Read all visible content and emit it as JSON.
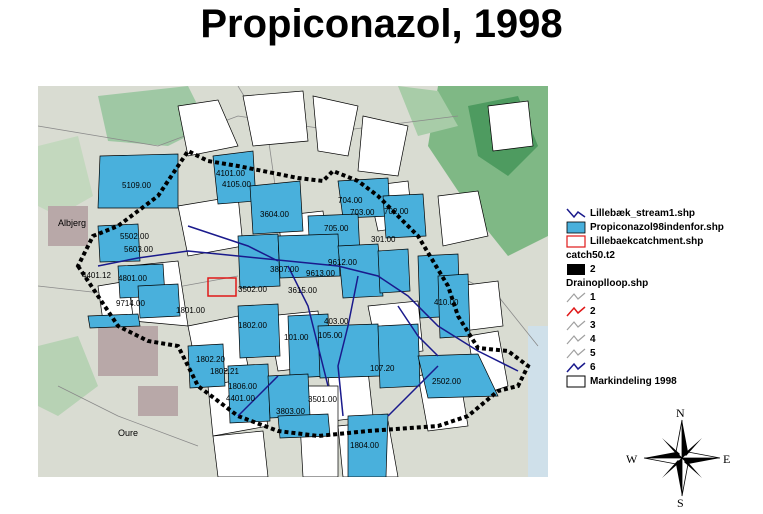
{
  "title": "Propiconazol, 1998",
  "map": {
    "place_labels": [
      "Albjerg",
      "Oure"
    ],
    "field_labels": [
      "5109.00",
      "4101.00",
      "4105.00",
      "3604.00",
      "704.00",
      "703.00",
      "702.00",
      "705.00",
      "5502.00",
      "5603.00",
      "3807.00",
      "9612.00",
      "9613.00",
      "4801.00",
      "4401.12",
      "9714.00",
      "3502.00",
      "3615.00",
      "1801.00",
      "1802.00",
      "301.00",
      "101.00",
      "1802.20",
      "1802.21",
      "1806.00",
      "4401.00",
      "3501.00",
      "3803.00",
      "1804.00",
      "2502.00",
      "107.20",
      "403.00",
      "105.00",
      "410.00"
    ]
  },
  "legend": {
    "items": [
      {
        "label": "Lillebæk_stream1.shp",
        "color": "#1a1a8c"
      },
      {
        "label": "Propiconazol98indenfor.shp",
        "color": "#49b0dc"
      },
      {
        "label": "Lillebaekcatchment.shp",
        "color": "#e01818"
      }
    ],
    "catch_title": "catch50.t2",
    "catch_items": [
      {
        "label": "2",
        "color": "#000000"
      }
    ],
    "drain_title": "Drainoplloop.shp",
    "drain_items": [
      {
        "label": "1",
        "color": "#a0a0a0"
      },
      {
        "label": "2",
        "color": "#e01818"
      },
      {
        "label": "3",
        "color": "#a0a0a0"
      },
      {
        "label": "4",
        "color": "#a0a0a0"
      },
      {
        "label": "5",
        "color": "#a0a0a0"
      },
      {
        "label": "6",
        "color": "#1a1a8c"
      }
    ],
    "parcel_label": "Markindeling 1998"
  },
  "compass": {
    "n": "N",
    "s": "S",
    "e": "E",
    "w": "W"
  }
}
